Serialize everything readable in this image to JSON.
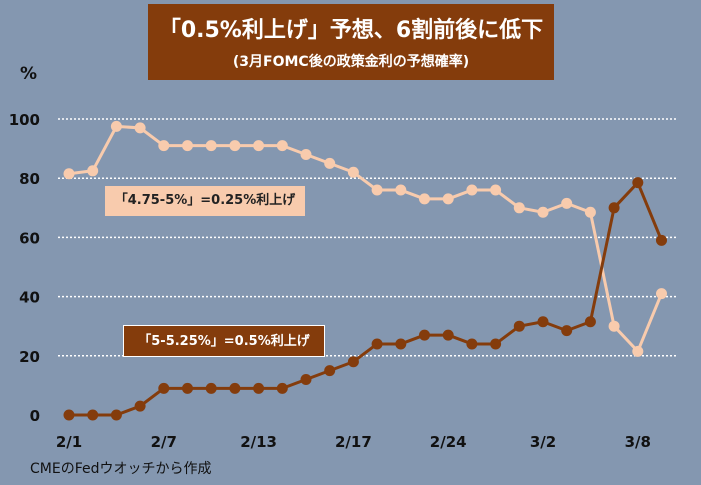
{
  "title": "「0.5%利上げ」予想、6割前後に低下",
  "subtitle": "(3月FOMC後の政策金利の予想確率)",
  "source": "CMEのFedウオッチから作成",
  "colors": {
    "background": "#8497b0",
    "title_bg": "#843c0c",
    "light_series": "#f8cbad",
    "dark_series": "#843c0c"
  },
  "chart_data": {
    "type": "line",
    "ylabel": "%",
    "ylim": [
      0,
      100
    ],
    "yticks": [
      0,
      20,
      40,
      60,
      80,
      100
    ],
    "grid": true,
    "x_tick_labels": [
      "2/1",
      "2/7",
      "2/13",
      "2/17",
      "2/24",
      "3/2",
      "3/8"
    ],
    "x_tick_index": [
      0,
      4,
      8,
      12,
      16,
      20,
      24
    ],
    "series": [
      {
        "name": "「4.75-5%」=0.25%利上げ",
        "color": "#f8cbad",
        "values": [
          81.5,
          82.5,
          97.5,
          97,
          91,
          91,
          91,
          91,
          91,
          91,
          88,
          85,
          82,
          76,
          76,
          73,
          73,
          76,
          76,
          70,
          68.5,
          71.5,
          68.5,
          30,
          21.5,
          41
        ]
      },
      {
        "name": "「5-5.25%」=0.5%利上げ",
        "color": "#843c0c",
        "values": [
          0,
          0,
          0,
          3,
          9,
          9,
          9,
          9,
          9,
          9,
          12,
          15,
          18,
          24,
          24,
          27,
          27,
          24,
          24,
          30,
          31.5,
          28.5,
          31.5,
          70,
          78.5,
          59
        ]
      }
    ]
  }
}
